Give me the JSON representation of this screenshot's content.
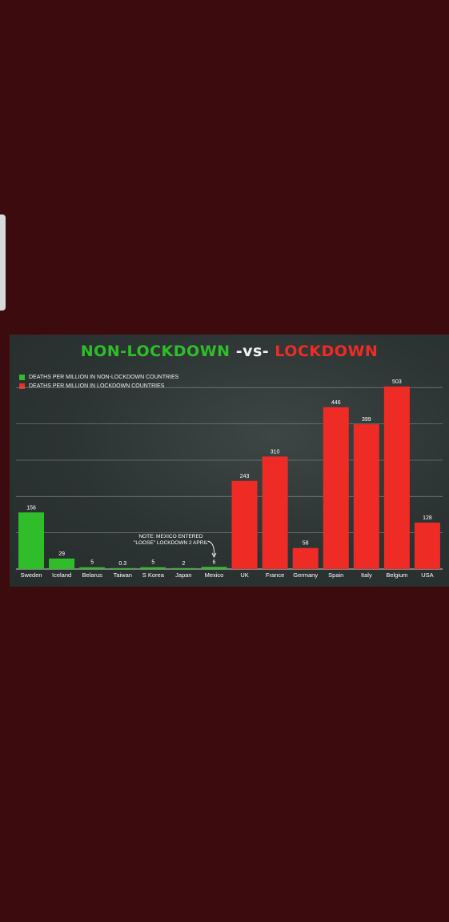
{
  "title": {
    "part1": "NON-LOCKDOWN",
    "part2": "-vs-",
    "part3": "LOCKDOWN"
  },
  "legend": [
    {
      "label": "DEATHS PER MILLION IN NON-LOCKDOWN COUNTRIES",
      "color": "#2fbd2a"
    },
    {
      "label": "DEATHS PER MILLION IN LOCKDOWN COUNTRIES",
      "color": "#ee2b25"
    }
  ],
  "annotation": {
    "line1": "NOTE: MEXICO ENTERED",
    "line2": "\"LOOSE\" LOCKDOWN 2 APRIL"
  },
  "chart_data": {
    "type": "bar",
    "title": "NON-LOCKDOWN -vs- LOCKDOWN",
    "categories": [
      "Sweden",
      "Iceland",
      "Belarus",
      "Taiwan",
      "S Korea",
      "Japan",
      "Mexico",
      "UK",
      "France",
      "Germany",
      "Spain",
      "Italy",
      "Belgium",
      "USA"
    ],
    "series": [
      {
        "name": "DEATHS PER MILLION IN NON-LOCKDOWN COUNTRIES",
        "color": "#2fbd2a",
        "values": [
          156,
          29,
          5,
          0.3,
          5,
          2,
          6,
          null,
          null,
          null,
          null,
          null,
          null,
          null
        ],
        "labels": [
          "156",
          "29",
          "5",
          "0.3",
          "5",
          "2",
          "6",
          "",
          "",
          "",
          "",
          "",
          "",
          ""
        ]
      },
      {
        "name": "DEATHS PER MILLION IN LOCKDOWN COUNTRIES",
        "color": "#ee2b25",
        "values": [
          null,
          null,
          null,
          null,
          null,
          null,
          null,
          243,
          310,
          58,
          446,
          399,
          503,
          128
        ],
        "labels": [
          "",
          "",
          "",
          "",
          "",
          "",
          "",
          "243",
          "310",
          "58",
          "446",
          "399",
          "503",
          "128"
        ]
      }
    ],
    "ylim": [
      0,
      550
    ],
    "grid": true,
    "legend_position": "top-left"
  }
}
